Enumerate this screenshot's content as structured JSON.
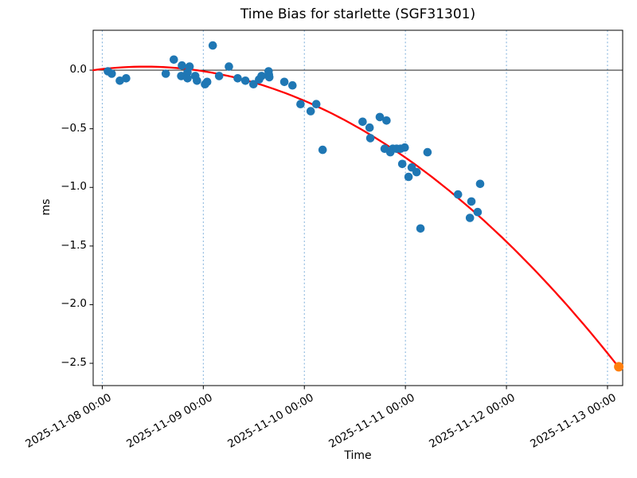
{
  "figure": {
    "background": "#ffffff"
  },
  "chart_data": {
    "type": "scatter",
    "title": "Time Bias for starlette (SGF31301)",
    "xlabel": "Time",
    "ylabel": "ms",
    "x_axis_start": "2025-11-08 00:00",
    "x_tick_labels": [
      "2025-11-08 00:00",
      "2025-11-09 00:00",
      "2025-11-10 00:00",
      "2025-11-11 00:00",
      "2025-11-12 00:00",
      "2025-11-13 00:00"
    ],
    "y_tick_labels": [
      "0.0",
      "−0.5",
      "−1.0",
      "−1.5",
      "−2.0",
      "−2.5"
    ],
    "y_tick_values": [
      0.0,
      -0.5,
      -1.0,
      -1.5,
      -2.0,
      -2.5
    ],
    "xlim_days": [
      -0.09,
      5.15
    ],
    "ylim": [
      -2.69,
      0.34
    ],
    "grid": {
      "axis": "x",
      "style": "dotted",
      "color": "#74a9d8"
    },
    "zero_line": {
      "show": true,
      "color": "#000000"
    },
    "colors": {
      "observations": "#1f77b4",
      "prediction": "#ff7f0e",
      "fit": "#ff0000"
    },
    "series": [
      {
        "name": "time-bias-observations",
        "type": "scatter",
        "color": "#1f77b4",
        "points": [
          [
            "2025-11-08 01:20",
            -0.01
          ],
          [
            "2025-11-08 02:15",
            -0.03
          ],
          [
            "2025-11-08 04:10",
            -0.09
          ],
          [
            "2025-11-08 05:40",
            -0.07
          ],
          [
            "2025-11-08 15:05",
            -0.03
          ],
          [
            "2025-11-08 17:00",
            0.09
          ],
          [
            "2025-11-08 18:45",
            -0.05
          ],
          [
            "2025-11-08 18:55",
            0.04
          ],
          [
            "2025-11-08 20:15",
            -0.02
          ],
          [
            "2025-11-08 20:15",
            -0.07
          ],
          [
            "2025-11-08 20:45",
            0.03
          ],
          [
            "2025-11-08 22:05",
            -0.05
          ],
          [
            "2025-11-08 22:30",
            -0.09
          ],
          [
            "2025-11-09 00:25",
            -0.12
          ],
          [
            "2025-11-09 00:55",
            -0.1
          ],
          [
            "2025-11-09 02:15",
            0.21
          ],
          [
            "2025-11-09 03:45",
            -0.05
          ],
          [
            "2025-11-09 06:05",
            0.03
          ],
          [
            "2025-11-09 08:10",
            -0.07
          ],
          [
            "2025-11-09 10:00",
            -0.09
          ],
          [
            "2025-11-09 11:55",
            -0.12
          ],
          [
            "2025-11-09 13:15",
            -0.08
          ],
          [
            "2025-11-09 13:50",
            -0.05
          ],
          [
            "2025-11-09 15:30",
            -0.01
          ],
          [
            "2025-11-09 15:35",
            -0.04
          ],
          [
            "2025-11-09 15:40",
            -0.06
          ],
          [
            "2025-11-09 19:15",
            -0.1
          ],
          [
            "2025-11-09 21:10",
            -0.13
          ],
          [
            "2025-11-09 23:05",
            -0.29
          ],
          [
            "2025-11-10 01:30",
            -0.35
          ],
          [
            "2025-11-10 02:50",
            -0.29
          ],
          [
            "2025-11-10 04:20",
            -0.68
          ],
          [
            "2025-11-10 13:50",
            -0.44
          ],
          [
            "2025-11-10 15:30",
            -0.49
          ],
          [
            "2025-11-10 15:40",
            -0.58
          ],
          [
            "2025-11-10 17:55",
            -0.4
          ],
          [
            "2025-11-10 19:30",
            -0.43
          ],
          [
            "2025-11-10 19:05",
            -0.67
          ],
          [
            "2025-11-10 20:25",
            -0.7
          ],
          [
            "2025-11-10 21:00",
            -0.67
          ],
          [
            "2025-11-10 21:55",
            -0.67
          ],
          [
            "2025-11-10 22:50",
            -0.67
          ],
          [
            "2025-11-10 23:50",
            -0.66
          ],
          [
            "2025-11-10 23:15",
            -0.8
          ],
          [
            "2025-11-11 00:45",
            -0.91
          ],
          [
            "2025-11-11 01:30",
            -0.83
          ],
          [
            "2025-11-11 02:40",
            -0.87
          ],
          [
            "2025-11-11 03:35",
            -1.35
          ],
          [
            "2025-11-11 05:15",
            -0.7
          ],
          [
            "2025-11-11 12:30",
            -1.06
          ],
          [
            "2025-11-11 15:20",
            -1.26
          ],
          [
            "2025-11-11 15:40",
            -1.12
          ],
          [
            "2025-11-11 17:10",
            -1.21
          ],
          [
            "2025-11-11 17:45",
            -0.97
          ]
        ]
      },
      {
        "name": "predicted-endpoint",
        "type": "scatter",
        "color": "#ff7f0e",
        "points": [
          [
            "2025-11-13 02:40",
            -2.53
          ]
        ]
      },
      {
        "name": "quadratic-fit",
        "type": "line",
        "color": "#ff0000",
        "fit": {
          "model": "quadratic",
          "vertex_datetime": "2025-11-08 10:05",
          "vertex_ms": 0.03,
          "curvature_ms_per_day2": -0.1165,
          "end_datetime": "2025-11-13 02:40",
          "end_ms": -2.53
        }
      }
    ]
  }
}
